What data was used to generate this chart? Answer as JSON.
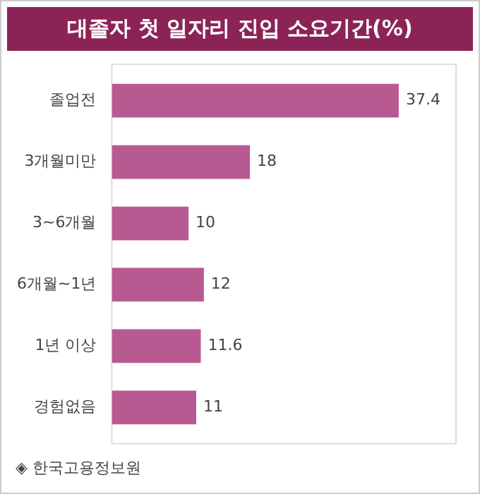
{
  "chart_data": {
    "type": "bar",
    "orientation": "horizontal",
    "title": "대졸자 첫 일자리 진입 소요기간(%)",
    "categories": [
      "졸업전",
      "3개월미만",
      "3~6개월",
      "6개월~1년",
      "1년 이상",
      "경험없음"
    ],
    "values": [
      37.4,
      18,
      10,
      12,
      11.6,
      11
    ],
    "color": "#b85a92",
    "data_labels": true,
    "annotations": [
      "◈ 한국고용정보원"
    ]
  }
}
